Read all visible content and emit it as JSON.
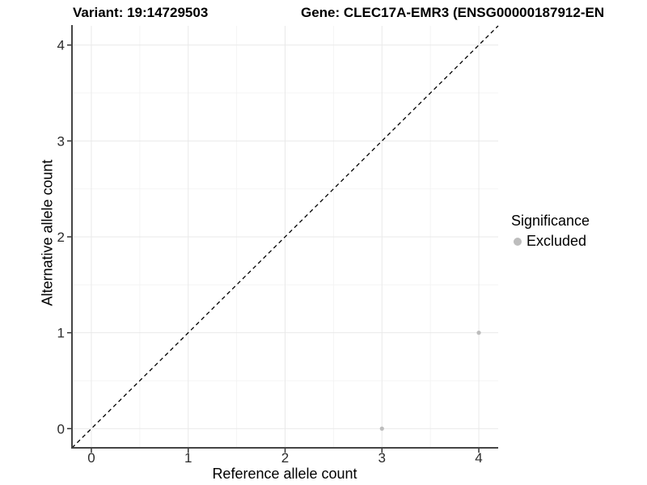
{
  "titles": {
    "variant": "Variant: 19:14729503",
    "gene": "Gene: CLEC17A-EMR3 (ENSG00000187912-EN"
  },
  "axes": {
    "x": {
      "label": "Reference allele count",
      "ticks": [
        "0",
        "1",
        "2",
        "3",
        "4"
      ]
    },
    "y": {
      "label": "Alternative allele count",
      "ticks": [
        "0",
        "1",
        "2",
        "3",
        "4"
      ]
    }
  },
  "legend": {
    "title": "Significance",
    "items": [
      {
        "label": "Excluded",
        "color": "#bdbdbd",
        "key_icon": "dot-icon"
      }
    ]
  },
  "colors": {
    "background": "#ffffff",
    "grid_major": "#e9e9e9",
    "grid_minor": "#f4f4f4",
    "axis_line": "#454545",
    "tick_mark": "#333333",
    "tick_label": "#2b2b2b",
    "point": "#bdbdbd",
    "reference_line": "#000000"
  },
  "chart_data": {
    "type": "scatter",
    "title": "Variant: 19:14729503",
    "subtitle": "Gene: CLEC17A-EMR3 (ENSG00000187912-EN",
    "xlabel": "Reference allele count",
    "ylabel": "Alternative allele count",
    "xlim": [
      -0.2,
      4.2
    ],
    "ylim": [
      -0.2,
      4.2
    ],
    "x_ticks": [
      0,
      1,
      2,
      3,
      4
    ],
    "y_ticks": [
      0,
      1,
      2,
      3,
      4
    ],
    "grid": "on",
    "legend_position": "right",
    "series": [
      {
        "name": "Excluded",
        "color": "#bdbdbd",
        "points": [
          [
            3,
            0
          ],
          [
            4,
            1
          ]
        ]
      }
    ],
    "reference_line": {
      "type": "identity y=x",
      "style": "dashed",
      "color": "#000000",
      "from": [
        -0.2,
        -0.2
      ],
      "to": [
        4.2,
        4.2
      ]
    }
  }
}
